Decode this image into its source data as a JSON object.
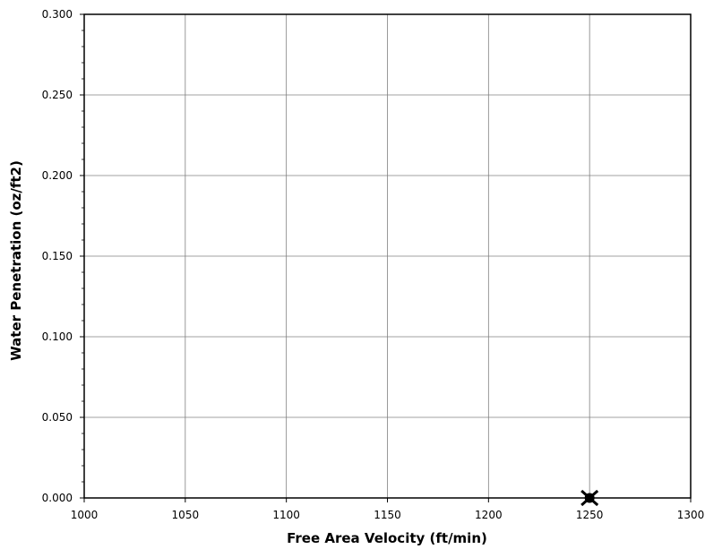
{
  "chart_data": {
    "type": "scatter",
    "title": "",
    "xlabel": "Free Area Velocity (ft/min)",
    "ylabel": "Water Penetration (oz/ft2)",
    "xlim": [
      1000,
      1300
    ],
    "ylim": [
      0,
      0.3
    ],
    "x_ticks": [
      "1000",
      "1050",
      "1100",
      "1150",
      "1200",
      "1250",
      "1300"
    ],
    "y_ticks": [
      "0.000",
      "0.050",
      "0.100",
      "0.150",
      "0.200",
      "0.250",
      "0.300"
    ],
    "grid": true,
    "legend": "none",
    "series": [
      {
        "points": [
          {
            "x": 1250,
            "y": 0.0
          }
        ],
        "marker": "x-filled-circle",
        "color": "#000000"
      }
    ]
  }
}
